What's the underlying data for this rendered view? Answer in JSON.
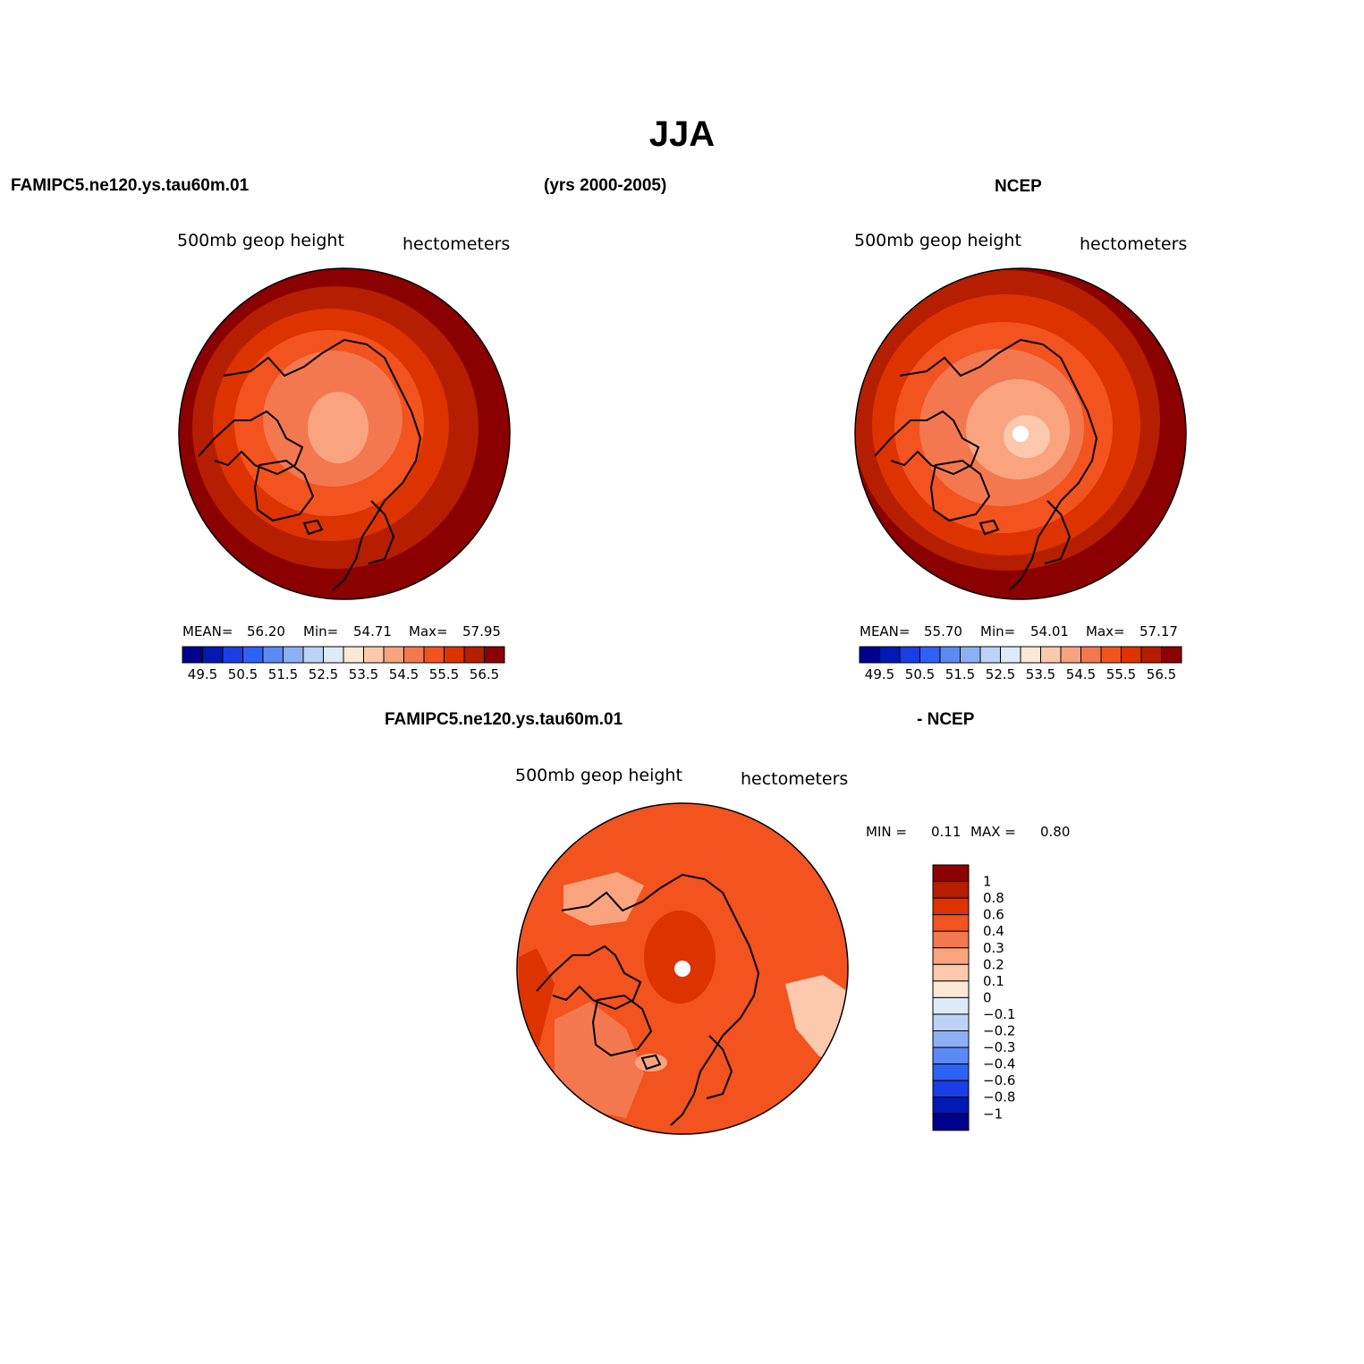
{
  "title": "JJA",
  "headers": {
    "model": "FAMIPC5.ne120.ys.tau60m.01",
    "years": "(yrs 2000-2005)",
    "obs": "NCEP",
    "diff_model": "FAMIPC5.ne120.ys.tau60m.01",
    "diff_obs": "- NCEP"
  },
  "panels": {
    "model": {
      "variable": "500mb geop height",
      "units": "hectometers",
      "stats": {
        "mean_label": "MEAN=",
        "mean": "56.20",
        "min_label": "Min=",
        "min": "54.71",
        "max_label": "Max=",
        "max": "57.95"
      }
    },
    "obs": {
      "variable": "500mb geop height",
      "units": "hectometers",
      "stats": {
        "mean_label": "MEAN=",
        "mean": "55.70",
        "min_label": "Min=",
        "min": "54.01",
        "max_label": "Max=",
        "max": "57.17"
      }
    },
    "diff": {
      "variable": "500mb geop height",
      "units": "hectometers",
      "stats": {
        "min_label": "MIN =",
        "min": "0.11",
        "max_label": "MAX =",
        "max": "0.80"
      }
    }
  },
  "colorbars": {
    "abs_colors": [
      "#00008f",
      "#0019b3",
      "#1a3de6",
      "#2e61f5",
      "#5b8af5",
      "#8db0f5",
      "#bcd3f7",
      "#dceaf9",
      "#fde8d5",
      "#fcc9ad",
      "#f9a47e",
      "#f3784f",
      "#f2531f",
      "#dd3300",
      "#b51e00",
      "#8b0000"
    ],
    "abs_ticks": [
      "49.5",
      "50.5",
      "51.5",
      "52.5",
      "53.5",
      "54.5",
      "55.5",
      "56.5"
    ],
    "diff_colors": [
      "#00008f",
      "#0019b3",
      "#1a3de6",
      "#2e61f5",
      "#5b8af5",
      "#8db0f5",
      "#bcd3f7",
      "#dceaf9",
      "#fde8d5",
      "#fcc9ad",
      "#f9a47e",
      "#f3784f",
      "#f2531f",
      "#dd3300",
      "#b51e00",
      "#8b0000"
    ],
    "diff_ticks": [
      "−1",
      "−0.8",
      "−0.6",
      "−0.4",
      "−0.3",
      "−0.2",
      "−0.1",
      "0",
      "0.1",
      "0.2",
      "0.3",
      "0.4",
      "0.6",
      "0.8",
      "1"
    ]
  },
  "chart_data": [
    {
      "type": "heatmap",
      "projection": "north-polar stereographic",
      "title": "500mb geop height",
      "units": "hectometers",
      "levels": [
        49.5,
        50,
        50.5,
        51,
        51.5,
        52,
        52.5,
        53,
        53.5,
        54,
        54.5,
        55,
        55.5,
        56,
        56.5
      ],
      "stats": {
        "mean": 56.2,
        "min": 54.71,
        "max": 57.95
      }
    },
    {
      "type": "heatmap",
      "projection": "north-polar stereographic",
      "title": "500mb geop height",
      "units": "hectometers",
      "levels": [
        49.5,
        50,
        50.5,
        51,
        51.5,
        52,
        52.5,
        53,
        53.5,
        54,
        54.5,
        55,
        55.5,
        56,
        56.5
      ],
      "stats": {
        "mean": 55.7,
        "min": 54.01,
        "max": 57.17
      }
    },
    {
      "type": "heatmap",
      "projection": "north-polar stereographic",
      "title": "500mb geop height",
      "units": "hectometers",
      "levels": [
        -1,
        -0.8,
        -0.6,
        -0.4,
        -0.3,
        -0.2,
        -0.1,
        0,
        0.1,
        0.2,
        0.3,
        0.4,
        0.6,
        0.8,
        1
      ],
      "stats": {
        "min": 0.11,
        "max": 0.8
      }
    }
  ]
}
